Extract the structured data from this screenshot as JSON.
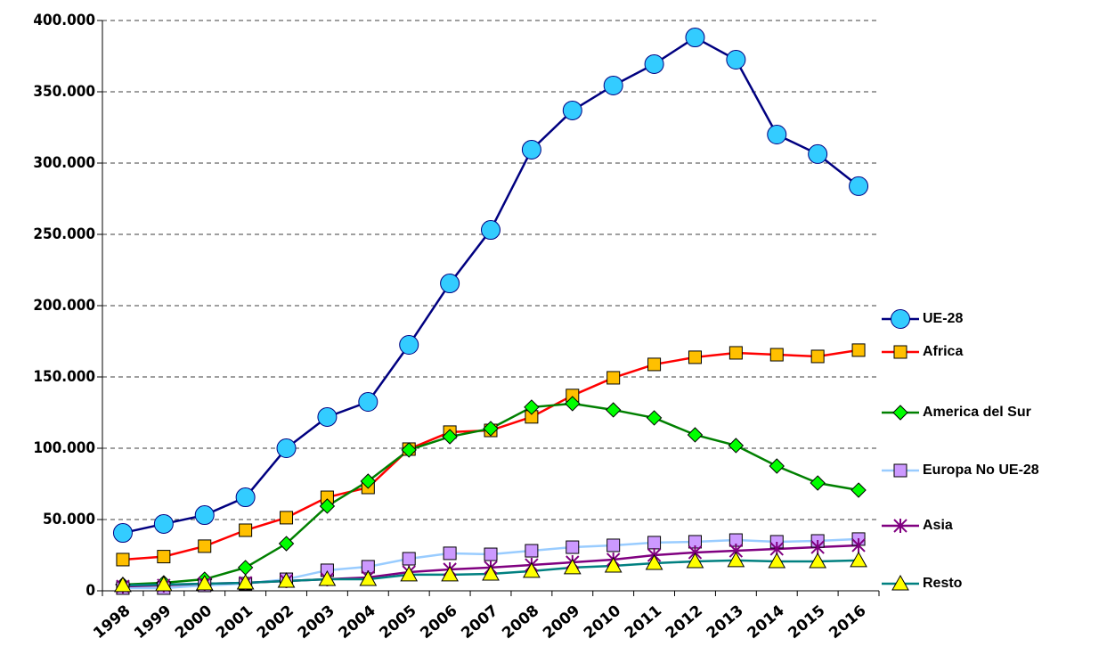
{
  "chart_data": {
    "type": "line",
    "categories": [
      "1998",
      "1999",
      "2000",
      "2001",
      "2002",
      "2003",
      "2004",
      "2005",
      "2006",
      "2007",
      "2008",
      "2009",
      "2010",
      "2011",
      "2012",
      "2013",
      "2014",
      "2015",
      "2016"
    ],
    "series": [
      {
        "name": "UE-28",
        "color": "#000080",
        "marker": "circle",
        "marker_color": "#33ccff",
        "values": [
          40600,
          46900,
          53100,
          65600,
          100000,
          121900,
          132500,
          172500,
          215600,
          253100,
          309400,
          336900,
          354400,
          369400,
          388100,
          372500,
          320000,
          306300,
          283800
        ]
      },
      {
        "name": "Africa",
        "color": "#ff0000",
        "marker": "square",
        "marker_color": "#ffc000",
        "values": [
          21900,
          24000,
          31300,
          42500,
          51300,
          65600,
          72500,
          99400,
          111300,
          112500,
          122000,
          137000,
          149400,
          158800,
          163800,
          166900,
          165600,
          164400,
          168800
        ]
      },
      {
        "name": "America del Sur",
        "color": "#008000",
        "marker": "diamond",
        "marker_color": "#00ff00",
        "values": [
          4400,
          5600,
          8100,
          16300,
          33100,
          59400,
          76900,
          98800,
          108100,
          113800,
          128800,
          131300,
          126900,
          121300,
          109400,
          101900,
          87500,
          75600,
          70600
        ]
      },
      {
        "name": "Europa No UE-28",
        "color": "#99ccff",
        "marker": "square",
        "marker_color": "#cc99ff",
        "values": [
          1900,
          1900,
          3800,
          5000,
          8100,
          14400,
          16900,
          22500,
          26300,
          25600,
          28100,
          30600,
          31900,
          33800,
          34400,
          35600,
          34400,
          35000,
          36300
        ]
      },
      {
        "name": "Asia",
        "color": "#800080",
        "marker": "star",
        "marker_color": "#800080",
        "values": [
          3100,
          3800,
          5000,
          5600,
          6900,
          8100,
          9400,
          13100,
          15000,
          16300,
          18100,
          20000,
          21900,
          25000,
          26900,
          28100,
          29400,
          30600,
          31900
        ]
      },
      {
        "name": "Resto",
        "color": "#008080",
        "marker": "triangle",
        "marker_color": "#ffff00",
        "values": [
          3800,
          4400,
          5000,
          5600,
          6900,
          8100,
          8100,
          11300,
          11300,
          11900,
          13800,
          16300,
          17500,
          19400,
          20600,
          21300,
          20600,
          20600,
          21300
        ]
      }
    ],
    "ylim": [
      0,
      400000
    ],
    "yticks": [
      0,
      {
        "value": 50000,
        "label": "50.000"
      },
      {
        "value": 100000,
        "label": "100.000"
      },
      {
        "value": 150000,
        "label": "150.000"
      },
      {
        "value": 200000,
        "label": "200.000"
      },
      {
        "value": 250000,
        "label": "250.000"
      },
      {
        "value": 300000,
        "label": "300.000"
      },
      {
        "value": 350000,
        "label": "350.000"
      },
      {
        "value": 400000,
        "label": "400.000"
      }
    ],
    "grid": true,
    "legend": "right"
  }
}
